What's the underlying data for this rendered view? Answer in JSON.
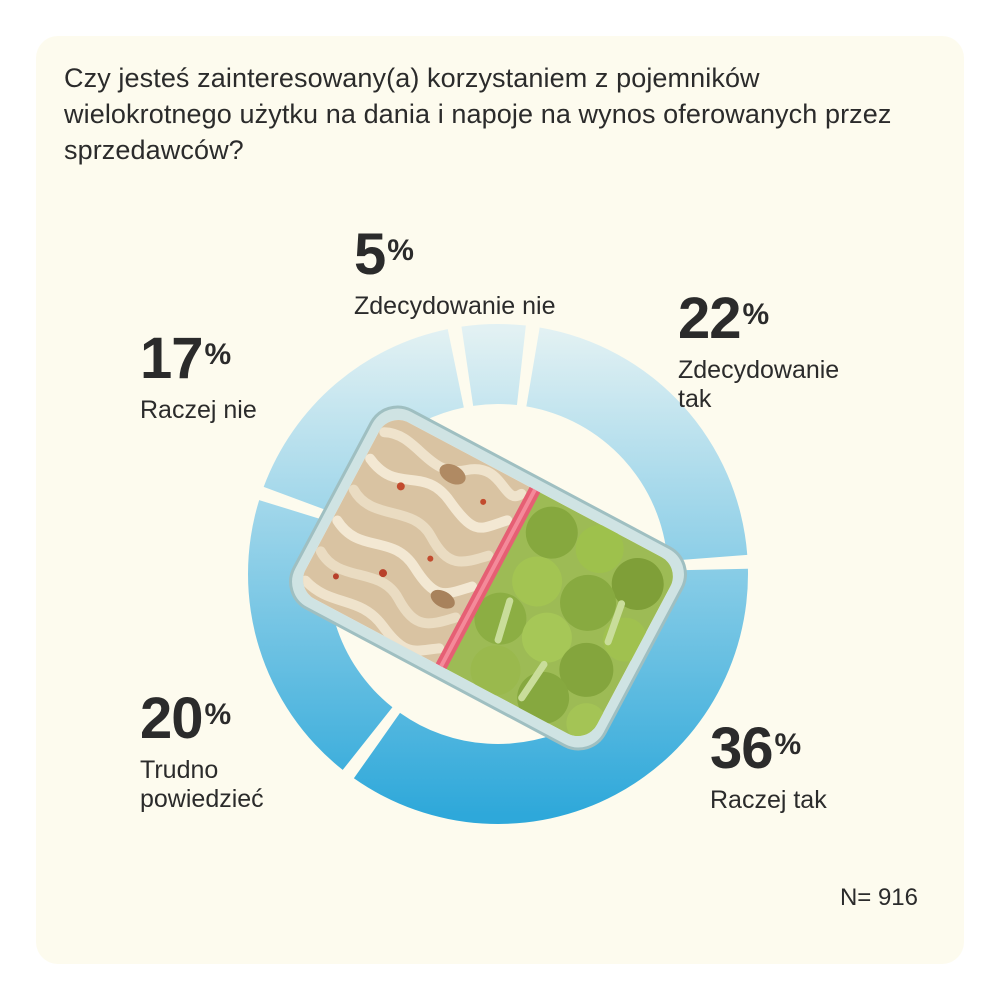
{
  "chart_data": {
    "type": "pie",
    "title": "Czy jesteś zainteresowany(a) korzystaniem z pojemników wielokrotnego użytku na dania i napoje na wynos oferowanych przez sprzedawców?",
    "categories": [
      "Zdecydowanie tak",
      "Raczej tak",
      "Trudno powiedzieć",
      "Raczej nie",
      "Zdecydowanie nie"
    ],
    "values": [
      22,
      36,
      20,
      17,
      5
    ],
    "unit": "%",
    "sample_label": "N= 916",
    "colors": {
      "light": "#dff0f2",
      "dark": "#2ea8da",
      "background": "#fdfbee",
      "text": "#2b2b2b"
    },
    "center_image": "lunchbox-with-pasta-and-broccoli"
  },
  "labels": [
    {
      "pct": "22",
      "sign": "%",
      "desc": "Zdecydowanie\ntak"
    },
    {
      "pct": "36",
      "sign": "%",
      "desc": "Raczej tak"
    },
    {
      "pct": "20",
      "sign": "%",
      "desc": "Trudno\npowiedzieć"
    },
    {
      "pct": "17",
      "sign": "%",
      "desc": "Raczej nie"
    },
    {
      "pct": "5",
      "sign": "%",
      "desc": "Zdecydowanie nie"
    }
  ]
}
